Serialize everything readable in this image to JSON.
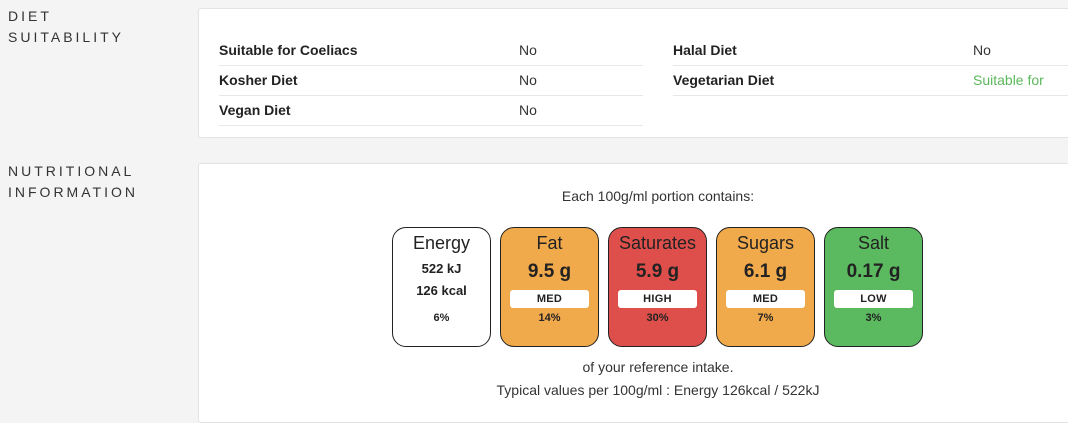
{
  "diet": {
    "section_label_1": "DIET",
    "section_label_2": "SUITABILITY",
    "left_rows": [
      {
        "name": "Suitable for Coeliacs",
        "value": "No"
      },
      {
        "name": "Kosher Diet",
        "value": "No"
      },
      {
        "name": "Vegan Diet",
        "value": "No"
      }
    ],
    "right_rows": [
      {
        "name": "Halal Diet",
        "value": "No"
      },
      {
        "name": "Vegetarian Diet",
        "value": "Suitable for"
      }
    ]
  },
  "nutrition": {
    "section_label_1": "NUTRITIONAL",
    "section_label_2": "INFORMATION",
    "header": "Each 100g/ml portion contains:",
    "energy": {
      "name": "Energy",
      "kj": "522 kJ",
      "kcal": "126 kcal",
      "percent": "6%"
    },
    "tiles": [
      {
        "name": "Fat",
        "value": "9.5 g",
        "level": "MED",
        "percent": "14%",
        "color": "#f0a94b"
      },
      {
        "name": "Saturates",
        "value": "5.9 g",
        "level": "HIGH",
        "percent": "30%",
        "color": "#de4f4b"
      },
      {
        "name": "Sugars",
        "value": "6.1 g",
        "level": "MED",
        "percent": "7%",
        "color": "#f0a94b"
      },
      {
        "name": "Salt",
        "value": "0.17 g",
        "level": "LOW",
        "percent": "3%",
        "color": "#5bba5f"
      }
    ],
    "reference_text": "of your reference intake.",
    "typical_text": "Typical values per 100g/ml : Energy 126kcal / 522kJ"
  }
}
